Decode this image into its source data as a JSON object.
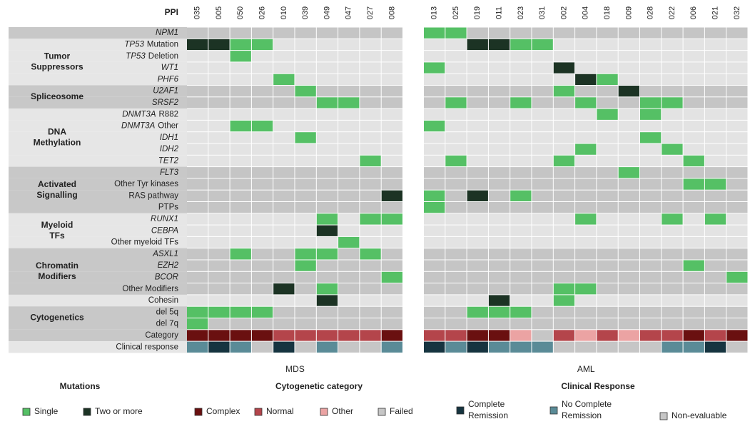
{
  "ppi_label": "PPI",
  "cohorts": [
    {
      "name": "MDS",
      "patients": [
        "035",
        "005",
        "050",
        "026",
        "010",
        "039",
        "049",
        "047",
        "027",
        "008"
      ]
    },
    {
      "name": "AML",
      "patients": [
        "013",
        "025",
        "019",
        "011",
        "023",
        "031",
        "002",
        "004",
        "018",
        "009",
        "028",
        "022",
        "006",
        "021",
        "032"
      ]
    }
  ],
  "groups": [
    {
      "rows": [
        {
          "gene": "NPM1",
          "values": [
            [
              0,
              0,
              0,
              0,
              0,
              0,
              0,
              0,
              0,
              0
            ],
            [
              1,
              1,
              0,
              0,
              0,
              0,
              0,
              0,
              0,
              0,
              0,
              0,
              0,
              0,
              0
            ]
          ]
        }
      ]
    },
    {
      "name": [
        "Tumor",
        "Suppressors"
      ],
      "rows": [
        {
          "gene": "TP53",
          "suffix": "Mutation",
          "values": [
            [
              2,
              2,
              1,
              1,
              0,
              0,
              0,
              0,
              0,
              0
            ],
            [
              0,
              0,
              2,
              2,
              1,
              1,
              0,
              0,
              0,
              0,
              0,
              0,
              0,
              0,
              0
            ]
          ]
        },
        {
          "gene": "TP53",
          "suffix": "Deletion",
          "values": [
            [
              0,
              0,
              1,
              0,
              0,
              0,
              0,
              0,
              0,
              0
            ],
            [
              0,
              0,
              0,
              0,
              0,
              0,
              0,
              0,
              0,
              0,
              0,
              0,
              0,
              0,
              0
            ]
          ]
        },
        {
          "gene": "WT1",
          "values": [
            [
              0,
              0,
              0,
              0,
              0,
              0,
              0,
              0,
              0,
              0
            ],
            [
              1,
              0,
              0,
              0,
              0,
              0,
              2,
              0,
              0,
              0,
              0,
              0,
              0,
              0,
              0
            ]
          ]
        },
        {
          "gene": "PHF6",
          "values": [
            [
              0,
              0,
              0,
              0,
              1,
              0,
              0,
              0,
              0,
              0
            ],
            [
              0,
              0,
              0,
              0,
              0,
              0,
              0,
              2,
              1,
              0,
              0,
              0,
              0,
              0,
              0
            ]
          ]
        }
      ]
    },
    {
      "name": [
        "Spliceosome"
      ],
      "rows": [
        {
          "gene": "U2AF1",
          "values": [
            [
              0,
              0,
              0,
              0,
              0,
              1,
              0,
              0,
              0,
              0
            ],
            [
              0,
              0,
              0,
              0,
              0,
              0,
              1,
              0,
              0,
              2,
              0,
              0,
              0,
              0,
              0
            ]
          ]
        },
        {
          "gene": "SRSF2",
          "values": [
            [
              0,
              0,
              0,
              0,
              0,
              0,
              1,
              1,
              0,
              0
            ],
            [
              0,
              1,
              0,
              0,
              1,
              0,
              0,
              1,
              0,
              0,
              1,
              1,
              0,
              0,
              0
            ]
          ]
        }
      ]
    },
    {
      "name": [
        "DNA",
        "Methylation"
      ],
      "rows": [
        {
          "gene": "DNMT3A",
          "suffix": "R882",
          "values": [
            [
              0,
              0,
              0,
              0,
              0,
              0,
              0,
              0,
              0,
              0
            ],
            [
              0,
              0,
              0,
              0,
              0,
              0,
              0,
              0,
              1,
              0,
              1,
              0,
              0,
              0,
              0
            ]
          ]
        },
        {
          "gene": "DNMT3A",
          "suffix": "Other",
          "values": [
            [
              0,
              0,
              1,
              1,
              0,
              0,
              0,
              0,
              0,
              0
            ],
            [
              1,
              0,
              0,
              0,
              0,
              0,
              0,
              0,
              0,
              0,
              0,
              0,
              0,
              0,
              0
            ]
          ]
        },
        {
          "gene": "IDH1",
          "values": [
            [
              0,
              0,
              0,
              0,
              0,
              1,
              0,
              0,
              0,
              0
            ],
            [
              0,
              0,
              0,
              0,
              0,
              0,
              0,
              0,
              0,
              0,
              1,
              0,
              0,
              0,
              0
            ]
          ]
        },
        {
          "gene": "IDH2",
          "values": [
            [
              0,
              0,
              0,
              0,
              0,
              0,
              0,
              0,
              0,
              0
            ],
            [
              0,
              0,
              0,
              0,
              0,
              0,
              0,
              1,
              0,
              0,
              0,
              1,
              0,
              0,
              0
            ]
          ]
        },
        {
          "gene": "TET2",
          "values": [
            [
              0,
              0,
              0,
              0,
              0,
              0,
              0,
              0,
              1,
              0
            ],
            [
              0,
              1,
              0,
              0,
              0,
              0,
              1,
              0,
              0,
              0,
              0,
              0,
              1,
              0,
              0
            ]
          ]
        }
      ]
    },
    {
      "name": [
        "Activated",
        "Signalling"
      ],
      "rows": [
        {
          "gene": "FLT3",
          "values": [
            [
              0,
              0,
              0,
              0,
              0,
              0,
              0,
              0,
              0,
              0
            ],
            [
              0,
              0,
              0,
              0,
              0,
              0,
              0,
              0,
              0,
              1,
              0,
              0,
              0,
              0,
              0
            ]
          ]
        },
        {
          "label": "Other Tyr kinases",
          "values": [
            [
              0,
              0,
              0,
              0,
              0,
              0,
              0,
              0,
              0,
              0
            ],
            [
              0,
              0,
              0,
              0,
              0,
              0,
              0,
              0,
              0,
              0,
              0,
              0,
              1,
              1,
              0
            ]
          ]
        },
        {
          "label": "RAS pathway",
          "values": [
            [
              0,
              0,
              0,
              0,
              0,
              0,
              0,
              0,
              0,
              2
            ],
            [
              1,
              0,
              2,
              0,
              1,
              0,
              0,
              0,
              0,
              0,
              0,
              0,
              0,
              0,
              0
            ]
          ]
        },
        {
          "label": "PTPs",
          "values": [
            [
              0,
              0,
              0,
              0,
              0,
              0,
              0,
              0,
              0,
              0
            ],
            [
              1,
              0,
              0,
              0,
              0,
              0,
              0,
              0,
              0,
              0,
              0,
              0,
              0,
              0,
              0
            ]
          ]
        }
      ]
    },
    {
      "name": [
        "Myeloid",
        "TFs"
      ],
      "rows": [
        {
          "gene": "RUNX1",
          "values": [
            [
              0,
              0,
              0,
              0,
              0,
              0,
              1,
              0,
              1,
              1
            ],
            [
              0,
              0,
              0,
              0,
              0,
              0,
              0,
              1,
              0,
              0,
              0,
              1,
              0,
              1,
              0
            ]
          ]
        },
        {
          "gene": "CEBPA",
          "values": [
            [
              0,
              0,
              0,
              0,
              0,
              0,
              2,
              0,
              0,
              0
            ],
            [
              0,
              0,
              0,
              0,
              0,
              0,
              0,
              0,
              0,
              0,
              0,
              0,
              0,
              0,
              0
            ]
          ]
        },
        {
          "label": "Other myeloid TFs",
          "values": [
            [
              0,
              0,
              0,
              0,
              0,
              0,
              0,
              1,
              0,
              0
            ],
            [
              0,
              0,
              0,
              0,
              0,
              0,
              0,
              0,
              0,
              0,
              0,
              0,
              0,
              0,
              0
            ]
          ]
        }
      ]
    },
    {
      "name": [
        "Chromatin",
        "Modifiers"
      ],
      "rows": [
        {
          "gene": "ASXL1",
          "values": [
            [
              0,
              0,
              1,
              0,
              0,
              1,
              1,
              0,
              1,
              0
            ],
            [
              0,
              0,
              0,
              0,
              0,
              0,
              0,
              0,
              0,
              0,
              0,
              0,
              0,
              0,
              0
            ]
          ]
        },
        {
          "gene": "EZH2",
          "values": [
            [
              0,
              0,
              0,
              0,
              0,
              1,
              0,
              0,
              0,
              0
            ],
            [
              0,
              0,
              0,
              0,
              0,
              0,
              0,
              0,
              0,
              0,
              0,
              0,
              1,
              0,
              0
            ]
          ]
        },
        {
          "gene": "BCOR",
          "values": [
            [
              0,
              0,
              0,
              0,
              0,
              0,
              0,
              0,
              0,
              1
            ],
            [
              0,
              0,
              0,
              0,
              0,
              0,
              0,
              0,
              0,
              0,
              0,
              0,
              0,
              0,
              1
            ]
          ]
        },
        {
          "label": "Other Modifiers",
          "values": [
            [
              0,
              0,
              0,
              0,
              2,
              0,
              1,
              0,
              0,
              0
            ],
            [
              0,
              0,
              0,
              0,
              0,
              0,
              1,
              1,
              0,
              0,
              0,
              0,
              0,
              0,
              0
            ]
          ]
        }
      ]
    },
    {
      "rows": [
        {
          "label": "Cohesin",
          "values": [
            [
              0,
              0,
              0,
              0,
              0,
              0,
              2,
              0,
              0,
              0
            ],
            [
              0,
              0,
              0,
              2,
              0,
              0,
              1,
              0,
              0,
              0,
              0,
              0,
              0,
              0,
              0
            ]
          ]
        }
      ]
    },
    {
      "name": [
        "Cytogenetics"
      ],
      "rows": [
        {
          "label": "del 5q",
          "values": [
            [
              1,
              1,
              1,
              1,
              0,
              0,
              0,
              0,
              0,
              0
            ],
            [
              0,
              0,
              1,
              1,
              1,
              0,
              0,
              0,
              0,
              0,
              0,
              0,
              0,
              0,
              0
            ]
          ]
        },
        {
          "label": "del 7q",
          "values": [
            [
              1,
              0,
              0,
              0,
              0,
              0,
              0,
              0,
              0,
              0
            ],
            [
              0,
              0,
              0,
              0,
              0,
              0,
              0,
              0,
              0,
              0,
              0,
              0,
              0,
              0,
              0
            ]
          ]
        }
      ]
    },
    {
      "rows": [
        {
          "label": "Category",
          "legend": 1,
          "values": [
            [
              0,
              0,
              0,
              0,
              1,
              1,
              1,
              1,
              1,
              0
            ],
            [
              1,
              1,
              0,
              0,
              2,
              3,
              1,
              2,
              1,
              2,
              1,
              1,
              0,
              1,
              0
            ]
          ]
        },
        {
          "label": "Clinical response",
          "legend": 2,
          "values": [
            [
              1,
              0,
              1,
              2,
              0,
              2,
              1,
              2,
              2,
              1
            ],
            [
              0,
              1,
              0,
              1,
              1,
              1,
              2,
              2,
              2,
              2,
              2,
              1,
              1,
              0,
              2
            ]
          ]
        }
      ]
    }
  ],
  "legends": [
    {
      "title": "Mutations",
      "items": [
        {
          "lines": [
            "Single"
          ],
          "color": "#55c065"
        },
        {
          "lines": [
            "Two or more"
          ],
          "color": "#1c3324"
        }
      ]
    },
    {
      "title": "Cytogenetic category",
      "items": [
        {
          "lines": [
            "Complex"
          ],
          "color": "#6a1010"
        },
        {
          "lines": [
            "Normal"
          ],
          "color": "#b4454b"
        },
        {
          "lines": [
            "Other"
          ],
          "color": "#eba3a3"
        },
        {
          "lines": [
            "Failed"
          ],
          "color": "#c6c6c6"
        }
      ]
    },
    {
      "title": "Clinical Response",
      "items": [
        {
          "lines": [
            "Complete",
            "Remission"
          ],
          "color": "#163440"
        },
        {
          "lines": [
            "No Complete",
            "Remission"
          ],
          "color": "#5a8b97"
        },
        {
          "lines": [
            "Non-evaluable"
          ],
          "color": "#c6c6c6"
        }
      ]
    }
  ]
}
